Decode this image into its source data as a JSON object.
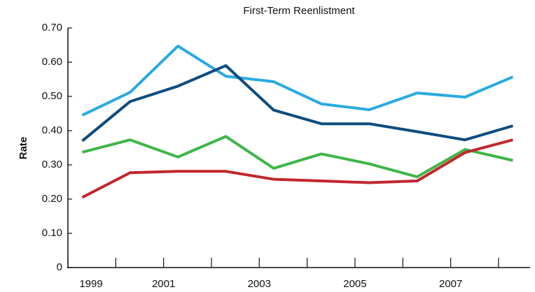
{
  "chart_data": {
    "type": "line",
    "title": "First-Term Reenlistment",
    "y_label": "Rate",
    "x": [
      1999.3,
      2000.3,
      2001.3,
      2002.3,
      2003.3,
      2004.3,
      2005.3,
      2006.3,
      2007.3,
      2008.3
    ],
    "xlim": [
      1999,
      2008.66
    ],
    "xticks": [
      1999,
      2001,
      2003,
      2005,
      2007
    ],
    "x_minor_ticks": [
      2000,
      2002,
      2004,
      2006,
      2008
    ],
    "ylim": [
      0,
      0.7
    ],
    "yticks": [
      0,
      {
        "value": 0.1,
        "label": "0.10"
      },
      {
        "value": 0.2,
        "label": "0.20"
      },
      {
        "value": 0.3,
        "label": "0.30"
      },
      {
        "value": 0.4,
        "label": "0.40"
      },
      {
        "value": 0.5,
        "label": "0.50"
      },
      {
        "value": 0.6,
        "label": "0.60"
      },
      {
        "value": 0.7,
        "label": "0.70"
      }
    ],
    "grid": false,
    "series": [
      {
        "color": "#29aae1",
        "values": [
          0.445,
          0.512,
          0.647,
          0.559,
          0.543,
          0.478,
          0.461,
          0.51,
          0.498,
          0.557
        ]
      },
      {
        "color": "#0d4c80",
        "values": [
          0.37,
          0.485,
          0.53,
          0.59,
          0.46,
          0.42,
          0.42,
          0.397,
          0.373,
          0.414
        ]
      },
      {
        "color": "#3fb549",
        "values": [
          0.337,
          0.373,
          0.323,
          0.383,
          0.29,
          0.332,
          0.303,
          0.265,
          0.345,
          0.313
        ]
      },
      {
        "color": "#c1272d",
        "values": [
          0.205,
          0.277,
          0.281,
          0.281,
          0.258,
          0.253,
          0.248,
          0.253,
          0.336,
          0.373
        ]
      }
    ]
  }
}
